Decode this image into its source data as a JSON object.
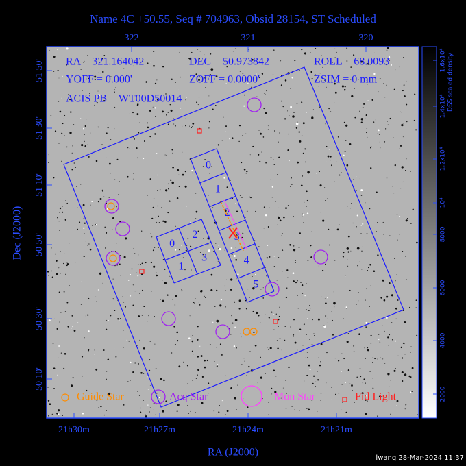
{
  "header": {
    "title": "Name 4C +50.55, Seq # 704963, Obsid 28154, ST Scheduled"
  },
  "info": {
    "rows": [
      [
        "RA = 321.164042",
        "DEC = 50.973842",
        "ROLL = 68.0093"
      ],
      [
        "YOFF = 0.000'",
        "ZOFF = 0.0000'",
        "ZSIM = 0 mm"
      ],
      [
        "ACIS PB = WT00D50014"
      ]
    ]
  },
  "axes": {
    "top": [
      "322",
      "321",
      "320"
    ],
    "bottom": [
      "21h30m",
      "21h27m",
      "21h24m",
      "21h21m"
    ],
    "left": [
      "51 50'",
      "51 30'",
      "51 10'",
      "50 50'",
      "50 30'",
      "50 10'"
    ],
    "x_label": "RA (J2000)",
    "y_label": "Dec (J2000)"
  },
  "colorbar": {
    "label": "DSS scaled density",
    "ticks": [
      "2000",
      "4000",
      "6000",
      "8000",
      "10⁴",
      "1.2x10⁴",
      "1.4x10⁴",
      "1.6x10⁴"
    ]
  },
  "chips": {
    "s_array": [
      "0",
      "1",
      "2",
      "3",
      "4",
      "5"
    ],
    "i_array": [
      "0",
      "2",
      "1",
      "3"
    ]
  },
  "legend": [
    "Guide Star",
    "Acq Star",
    "Mon Star",
    "Fid Light"
  ],
  "footer": "lwang 28-Mar-2024 11:37"
}
